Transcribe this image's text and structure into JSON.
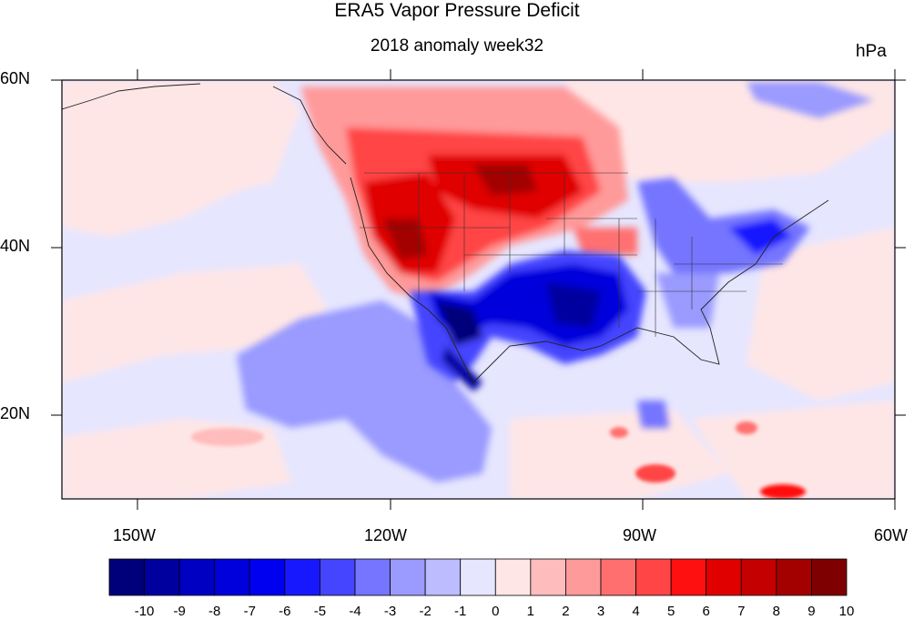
{
  "title": "ERA5 Vapor Pressure Deficit",
  "subtitle": "2018 anomaly week32",
  "units": "hPa",
  "map": {
    "lat_labels": [
      "60N",
      "40N",
      "20N"
    ],
    "lon_labels": [
      "150W",
      "120W",
      "90W",
      "60W"
    ],
    "lon_range": [
      -160,
      -60
    ],
    "lat_range": [
      10,
      60
    ]
  },
  "colorbar": {
    "labels": [
      "-10",
      "-9",
      "-8",
      "-7",
      "-6",
      "-5",
      "-4",
      "-3",
      "-2",
      "-1",
      "0",
      "1",
      "2",
      "3",
      "4",
      "5",
      "6",
      "7",
      "8",
      "9",
      "10"
    ],
    "colors": [
      "#00007a",
      "#00009f",
      "#0000c2",
      "#0000dc",
      "#0000f0",
      "#1818ff",
      "#4545ff",
      "#7575ff",
      "#9a9aff",
      "#bcbcff",
      "#e6e6ff",
      "#ffe6e6",
      "#ffbcbc",
      "#ff9a9a",
      "#ff6f6f",
      "#ff4545",
      "#ff1010",
      "#e00000",
      "#c40000",
      "#a30000",
      "#7e0000"
    ]
  },
  "colors": {
    "background": "#e6e6ff",
    "frame": "#000000"
  },
  "regions": [
    {
      "name": "northwest-strong-positive",
      "value": 6,
      "lon": -110,
      "lat": 44
    },
    {
      "name": "southern-plains-negative",
      "value": -6,
      "lon": -98,
      "lat": 33
    },
    {
      "name": "desert-southwest-negative",
      "value": -8,
      "lon": -112,
      "lat": 30
    },
    {
      "name": "northeast-negative",
      "value": -3,
      "lon": -78,
      "lat": 40
    },
    {
      "name": "great-lakes-negative",
      "value": -3,
      "lon": -87,
      "lat": 45
    }
  ]
}
